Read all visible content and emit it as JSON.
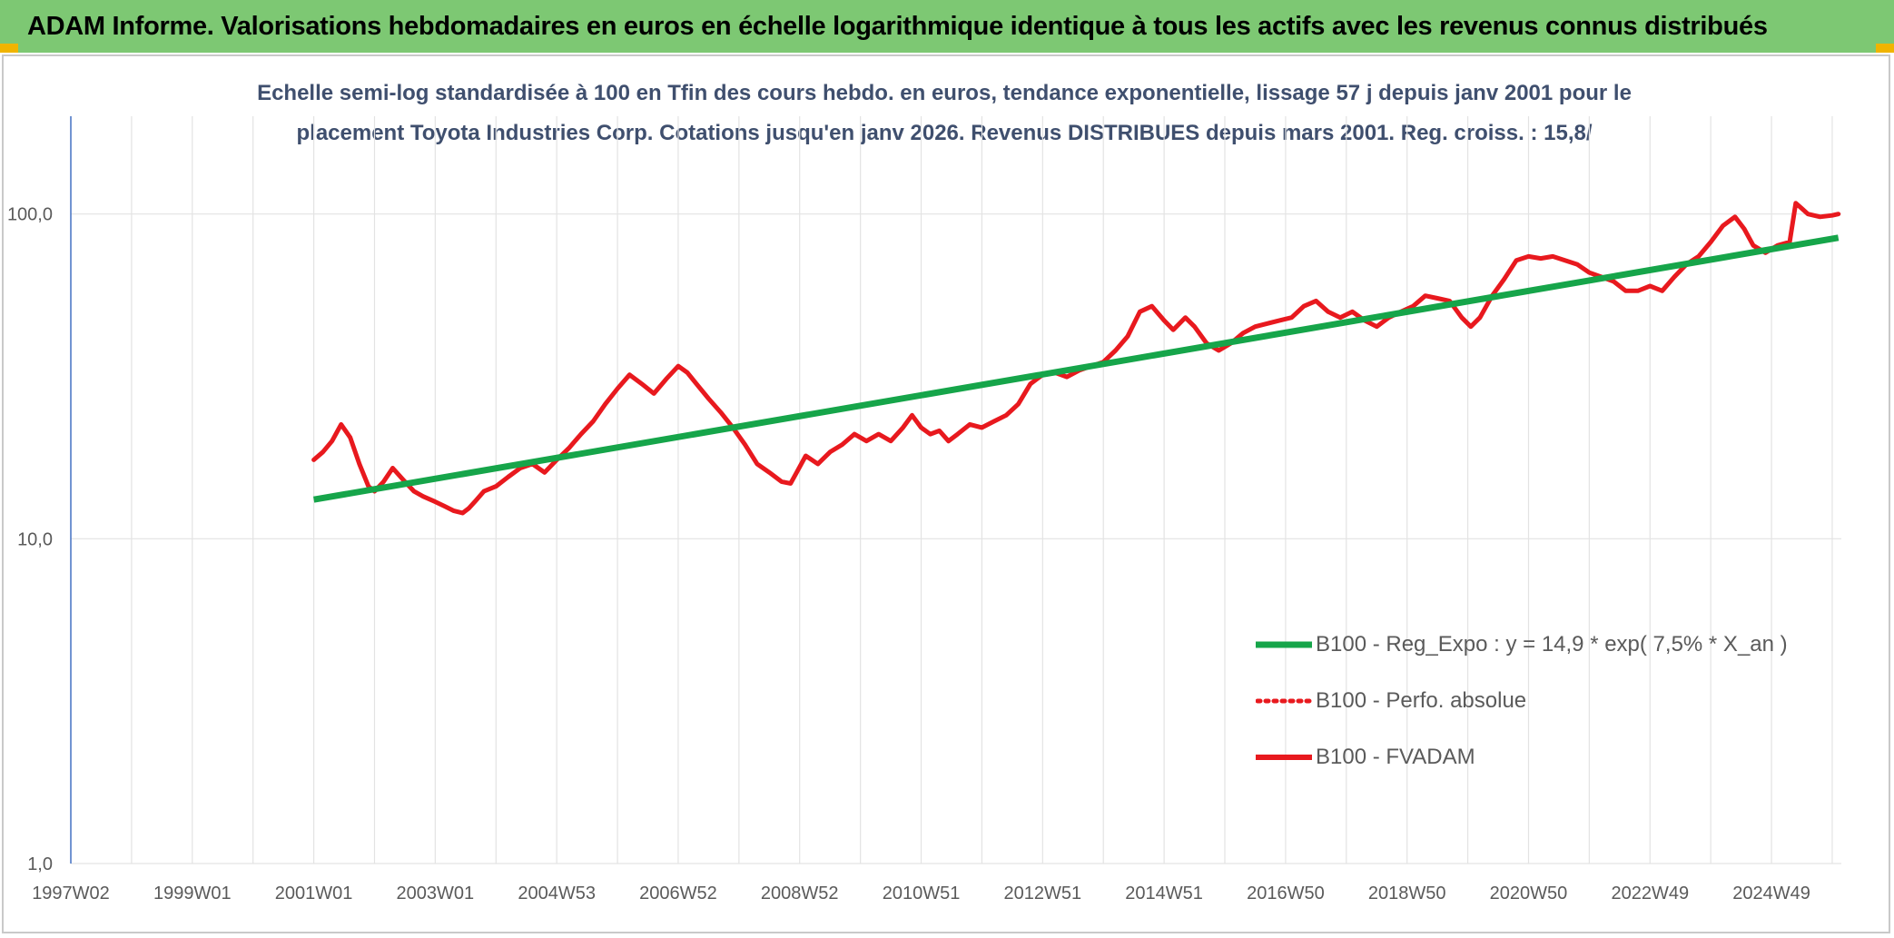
{
  "header": {
    "title": "ADAM Informe. Valorisations hebdomadaires en euros en échelle logarithmique identique à tous les actifs avec les revenus connus distribués"
  },
  "colors": {
    "banner": "#7dc873",
    "corner_accent": "#f0b400",
    "regression": "#16a54a",
    "fvadam": "#e8191e",
    "perfo_absolue": "#e8191e",
    "title_text": "#3f4f6e",
    "axis_text": "#5a5a5a",
    "y_axis_line": "#4472c4",
    "grid": "#e3e3e3"
  },
  "chart_data": {
    "type": "line",
    "title_line1": "Echelle semi-log standardisée à 100 en Tfin des cours hebdo. en euros, tendance exponentielle, lissage 57 j depuis janv 2001 pour le",
    "title_line2": "placement Toyota Industries Corp. Cotations jusqu'en janv 2026. Revenus DISTRIBUES depuis mars 2001. Reg. croiss. : 15,8/",
    "y_scale": "log",
    "y_range": [
      1,
      200
    ],
    "y_ticks": [
      {
        "value": 1,
        "label": "1,0"
      },
      {
        "value": 10,
        "label": "10,0"
      },
      {
        "value": 100,
        "label": "100,0"
      }
    ],
    "x_range": [
      1997.0,
      2026.15
    ],
    "x_ticks": [
      {
        "value": 1997.0,
        "label": "1997W02"
      },
      {
        "value": 1999.0,
        "label": "1999W01"
      },
      {
        "value": 2001.0,
        "label": "2001W01"
      },
      {
        "value": 2003.0,
        "label": "2003W01"
      },
      {
        "value": 2005.0,
        "label": "2004W53"
      },
      {
        "value": 2007.0,
        "label": "2006W52"
      },
      {
        "value": 2009.0,
        "label": "2008W52"
      },
      {
        "value": 2011.0,
        "label": "2010W51"
      },
      {
        "value": 2013.0,
        "label": "2012W51"
      },
      {
        "value": 2015.0,
        "label": "2014W51"
      },
      {
        "value": 2017.0,
        "label": "2016W50"
      },
      {
        "value": 2019.0,
        "label": "2018W50"
      },
      {
        "value": 2021.0,
        "label": "2020W50"
      },
      {
        "value": 2023.0,
        "label": "2022W49"
      },
      {
        "value": 2025.0,
        "label": "2024W49"
      }
    ],
    "grid": true,
    "legend_position": "right",
    "series": [
      {
        "name": "B100 - Reg_Expo : y = 14,9 * exp( 7,5% *  X_an )",
        "style": "solid-thick",
        "color": "#16a54a",
        "x": [
          2001.0,
          2026.1
        ],
        "y": [
          13.2,
          84.5
        ]
      },
      {
        "name": "B100 - Perfo. absolue",
        "style": "dotted",
        "color": "#e8191e",
        "x": [],
        "y": []
      },
      {
        "name": "B100 - FVADAM",
        "style": "solid",
        "color": "#e8191e",
        "x": [
          2001.0,
          2001.15,
          2001.3,
          2001.45,
          2001.6,
          2001.75,
          2001.9,
          2002.0,
          2002.15,
          2002.3,
          2002.5,
          2002.65,
          2002.8,
          2003.0,
          2003.15,
          2003.3,
          2003.45,
          2003.55,
          2003.65,
          2003.8,
          2004.0,
          2004.2,
          2004.4,
          2004.6,
          2004.8,
          2005.0,
          2005.2,
          2005.4,
          2005.6,
          2005.8,
          2006.0,
          2006.2,
          2006.4,
          2006.6,
          2006.8,
          2007.0,
          2007.15,
          2007.3,
          2007.5,
          2007.7,
          2007.9,
          2008.1,
          2008.3,
          2008.5,
          2008.7,
          2008.85,
          2008.95,
          2009.1,
          2009.3,
          2009.5,
          2009.7,
          2009.9,
          2010.1,
          2010.3,
          2010.5,
          2010.7,
          2010.85,
          2011.0,
          2011.15,
          2011.3,
          2011.45,
          2011.6,
          2011.8,
          2012.0,
          2012.2,
          2012.4,
          2012.6,
          2012.8,
          2013.0,
          2013.2,
          2013.4,
          2013.6,
          2013.8,
          2014.0,
          2014.2,
          2014.4,
          2014.6,
          2014.8,
          2015.0,
          2015.15,
          2015.35,
          2015.5,
          2015.7,
          2015.9,
          2016.1,
          2016.3,
          2016.5,
          2016.7,
          2016.9,
          2017.1,
          2017.3,
          2017.5,
          2017.7,
          2017.9,
          2018.1,
          2018.3,
          2018.5,
          2018.7,
          2018.9,
          2019.1,
          2019.3,
          2019.5,
          2019.7,
          2019.9,
          2020.05,
          2020.2,
          2020.4,
          2020.6,
          2020.8,
          2021.0,
          2021.2,
          2021.4,
          2021.6,
          2021.8,
          2022.0,
          2022.2,
          2022.4,
          2022.6,
          2022.8,
          2023.0,
          2023.2,
          2023.4,
          2023.6,
          2023.8,
          2024.0,
          2024.2,
          2024.4,
          2024.55,
          2024.7,
          2024.9,
          2025.1,
          2025.3,
          2025.4,
          2025.5,
          2025.6,
          2025.8,
          2026.0,
          2026.1
        ],
        "y": [
          17.5,
          18.5,
          20.0,
          22.5,
          20.5,
          17.0,
          14.5,
          14.0,
          15.0,
          16.5,
          15.0,
          14.0,
          13.5,
          13.0,
          12.6,
          12.2,
          12.0,
          12.4,
          13.0,
          14.0,
          14.5,
          15.5,
          16.5,
          17.0,
          16.0,
          17.5,
          19.0,
          21.0,
          23.0,
          26.0,
          29.0,
          32.0,
          30.0,
          28.0,
          31.0,
          34.0,
          32.5,
          30.0,
          27.0,
          24.5,
          22.0,
          19.5,
          17.0,
          16.0,
          15.0,
          14.8,
          16.0,
          18.0,
          17.0,
          18.5,
          19.5,
          21.0,
          20.0,
          21.0,
          20.0,
          22.0,
          24.0,
          22.0,
          21.0,
          21.5,
          20.0,
          21.0,
          22.5,
          22.0,
          23.0,
          24.0,
          26.0,
          30.0,
          32.0,
          32.5,
          31.5,
          33.0,
          34.0,
          35.0,
          38.0,
          42.0,
          50.0,
          52.0,
          47.0,
          44.0,
          48.0,
          45.0,
          40.0,
          38.0,
          40.0,
          43.0,
          45.0,
          46.0,
          47.0,
          48.0,
          52.0,
          54.0,
          50.0,
          48.0,
          50.0,
          47.0,
          45.0,
          48.0,
          50.0,
          52.0,
          56.0,
          55.0,
          54.0,
          48.0,
          45.0,
          48.0,
          56.0,
          63.0,
          72.0,
          74.0,
          73.0,
          74.0,
          72.0,
          70.0,
          66.0,
          64.0,
          62.0,
          58.0,
          58.0,
          60.0,
          58.0,
          64.0,
          70.0,
          74.0,
          82.0,
          92.0,
          98.0,
          90.0,
          80.0,
          76.0,
          80.0,
          82.0,
          108.0,
          104.0,
          100.0,
          98.0,
          99.0,
          100.0
        ]
      }
    ]
  }
}
